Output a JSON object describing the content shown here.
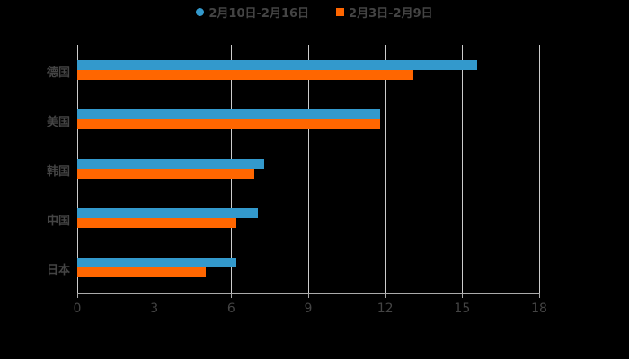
{
  "chart_data": {
    "type": "bar",
    "orientation": "horizontal",
    "title": "",
    "categories": [
      "德国",
      "美国",
      "韩国",
      "中国",
      "日本"
    ],
    "series": [
      {
        "name": "2月10日-2月16日",
        "color": "#3399cc",
        "values": [
          15.6,
          11.8,
          7.3,
          7.05,
          6.2
        ]
      },
      {
        "name": "2月3日-2月9日",
        "color": "#ff6600",
        "values": [
          13.1,
          11.8,
          6.9,
          6.2,
          5.0
        ]
      }
    ],
    "xlabel": "",
    "ylabel": "",
    "xlim": [
      0,
      18
    ],
    "xticks": [
      "0",
      "3",
      "6",
      "9",
      "12",
      "15",
      "18"
    ],
    "grid": true,
    "legend_position": "top"
  }
}
